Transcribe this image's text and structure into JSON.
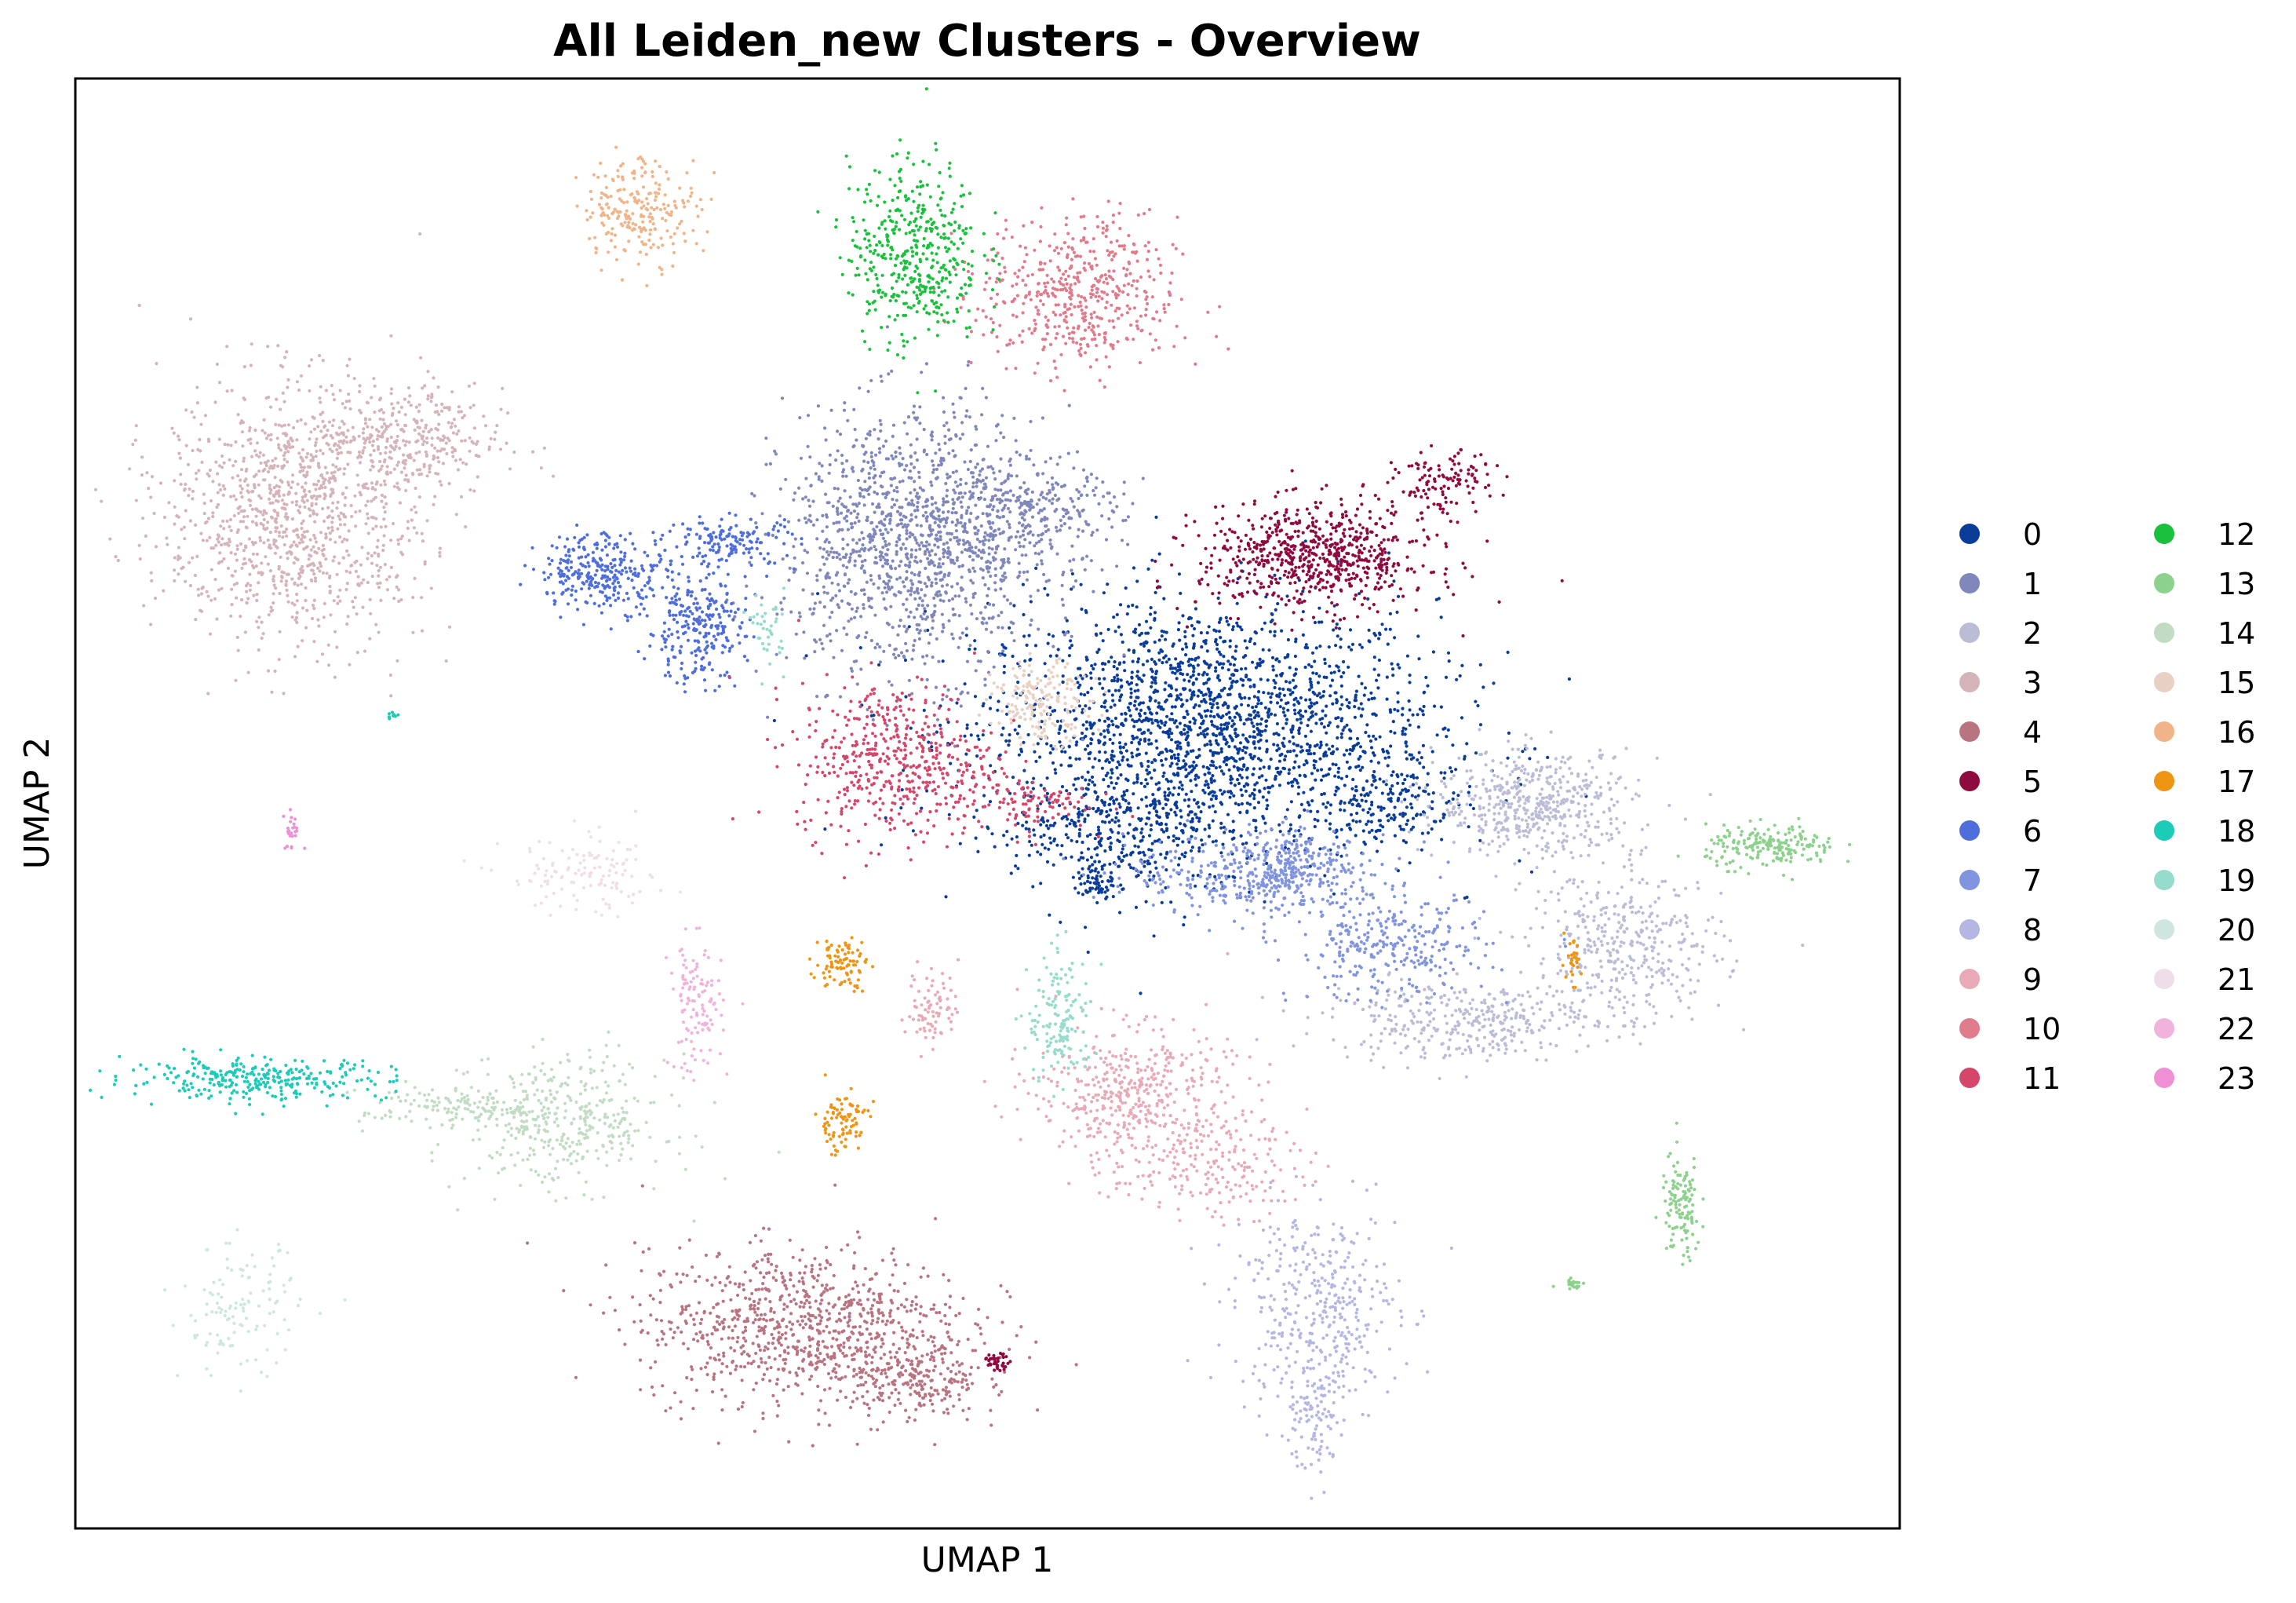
{
  "chart_data": {
    "type": "scatter",
    "title": "All Leiden_new Clusters - Overview",
    "xlabel": "UMAP 1",
    "ylabel": "UMAP 2",
    "xlim": [
      0,
      100
    ],
    "ylim": [
      0,
      100
    ],
    "grid": false,
    "ticks": false,
    "legend": {
      "placement": "right, outside plot",
      "columns": 2
    },
    "series": [
      {
        "name": "0",
        "color": "#0a3c9a",
        "clusters": [
          {
            "x": 62,
            "y": 55,
            "sx": 7.0,
            "sy": 5.0,
            "n": 2200
          },
          {
            "x": 57,
            "y": 48,
            "sx": 3.0,
            "sy": 2.0,
            "n": 250
          },
          {
            "x": 72,
            "y": 50,
            "sx": 2.0,
            "sy": 1.5,
            "n": 150
          },
          {
            "x": 56,
            "y": 44.5,
            "sx": 0.6,
            "sy": 0.8,
            "n": 60
          }
        ]
      },
      {
        "name": "1",
        "color": "#8088bb",
        "clusters": [
          {
            "x": 46,
            "y": 68,
            "sx": 4.0,
            "sy": 5.0,
            "n": 1300
          },
          {
            "x": 52,
            "y": 70,
            "sx": 3.0,
            "sy": 2.0,
            "n": 300
          }
        ]
      },
      {
        "name": "2",
        "color": "#bbbdd6",
        "clusters": [
          {
            "x": 80,
            "y": 50,
            "sx": 3.0,
            "sy": 2.0,
            "n": 500
          },
          {
            "x": 85,
            "y": 40,
            "sx": 3.0,
            "sy": 3.0,
            "n": 400
          },
          {
            "x": 76,
            "y": 35,
            "sx": 4.0,
            "sy": 1.5,
            "n": 350
          }
        ]
      },
      {
        "name": "3",
        "color": "#d4b4b9",
        "clusters": [
          {
            "x": 12,
            "y": 70,
            "sx": 4.0,
            "sy": 5.0,
            "n": 1100
          },
          {
            "x": 18,
            "y": 75,
            "sx": 3.0,
            "sy": 2.0,
            "n": 300
          }
        ]
      },
      {
        "name": "4",
        "color": "#b87480",
        "clusters": [
          {
            "x": 40,
            "y": 14,
            "sx": 5.0,
            "sy": 3.0,
            "n": 900
          },
          {
            "x": 46,
            "y": 10,
            "sx": 2.0,
            "sy": 1.5,
            "n": 200
          }
        ]
      },
      {
        "name": "5",
        "color": "#8e0a3f",
        "clusters": [
          {
            "x": 68,
            "y": 67,
            "sx": 3.5,
            "sy": 2.0,
            "n": 700
          },
          {
            "x": 75,
            "y": 72,
            "sx": 1.5,
            "sy": 1.2,
            "n": 120
          },
          {
            "x": 50.5,
            "y": 11.5,
            "sx": 0.4,
            "sy": 0.3,
            "n": 40
          }
        ]
      },
      {
        "name": "6",
        "color": "#4e6edb",
        "clusters": [
          {
            "x": 29,
            "y": 66,
            "sx": 2.0,
            "sy": 1.5,
            "n": 300
          },
          {
            "x": 34,
            "y": 62,
            "sx": 1.5,
            "sy": 2.0,
            "n": 250
          },
          {
            "x": 36,
            "y": 68,
            "sx": 2.0,
            "sy": 1.0,
            "n": 150
          }
        ]
      },
      {
        "name": "7",
        "color": "#8094e0",
        "clusters": [
          {
            "x": 65,
            "y": 45,
            "sx": 4.0,
            "sy": 1.5,
            "n": 350
          },
          {
            "x": 72,
            "y": 40,
            "sx": 3.0,
            "sy": 2.0,
            "n": 300
          },
          {
            "x": 67,
            "y": 46,
            "sx": 1.5,
            "sy": 1.5,
            "n": 150
          }
        ]
      },
      {
        "name": "8",
        "color": "#b3b7e2",
        "clusters": [
          {
            "x": 68,
            "y": 15,
            "sx": 2.5,
            "sy": 4.0,
            "n": 400
          },
          {
            "x": 68,
            "y": 7,
            "sx": 0.8,
            "sy": 2.0,
            "n": 80
          }
        ]
      },
      {
        "name": "9",
        "color": "#e8aab6",
        "clusters": [
          {
            "x": 58,
            "y": 30,
            "sx": 3.0,
            "sy": 2.5,
            "n": 450
          },
          {
            "x": 62,
            "y": 25,
            "sx": 3.0,
            "sy": 2.0,
            "n": 200
          },
          {
            "x": 47,
            "y": 36,
            "sx": 0.8,
            "sy": 1.5,
            "n": 80
          }
        ]
      },
      {
        "name": "10",
        "color": "#e07b8c",
        "clusters": [
          {
            "x": 55,
            "y": 85,
            "sx": 3.0,
            "sy": 3.0,
            "n": 500
          }
        ]
      },
      {
        "name": "11",
        "color": "#d4476a",
        "clusters": [
          {
            "x": 45,
            "y": 53,
            "sx": 3.0,
            "sy": 3.0,
            "n": 500
          },
          {
            "x": 52,
            "y": 50,
            "sx": 2.0,
            "sy": 1.0,
            "n": 100
          }
        ]
      },
      {
        "name": "12",
        "color": "#19c13d",
        "clusters": [
          {
            "x": 46,
            "y": 88,
            "sx": 2.0,
            "sy": 3.5,
            "n": 450
          }
        ]
      },
      {
        "name": "13",
        "color": "#8cd18c",
        "clusters": [
          {
            "x": 93,
            "y": 47,
            "sx": 2.0,
            "sy": 0.8,
            "n": 200
          },
          {
            "x": 88,
            "y": 22,
            "sx": 0.6,
            "sy": 2.0,
            "n": 120
          },
          {
            "x": 82,
            "y": 17,
            "sx": 0.4,
            "sy": 0.3,
            "n": 20
          }
        ]
      },
      {
        "name": "14",
        "color": "#c2dcc4",
        "clusters": [
          {
            "x": 27,
            "y": 28,
            "sx": 3.0,
            "sy": 2.5,
            "n": 350
          },
          {
            "x": 21,
            "y": 29,
            "sx": 3.0,
            "sy": 1.0,
            "n": 150
          }
        ]
      },
      {
        "name": "15",
        "color": "#e8d0c4",
        "clusters": [
          {
            "x": 53,
            "y": 57,
            "sx": 1.5,
            "sy": 1.5,
            "n": 180
          }
        ]
      },
      {
        "name": "16",
        "color": "#f0b488",
        "clusters": [
          {
            "x": 31,
            "y": 91,
            "sx": 1.8,
            "sy": 2.0,
            "n": 230
          }
        ]
      },
      {
        "name": "17",
        "color": "#ee9514",
        "clusters": [
          {
            "x": 42,
            "y": 39,
            "sx": 0.8,
            "sy": 1.0,
            "n": 90
          },
          {
            "x": 42,
            "y": 28,
            "sx": 0.8,
            "sy": 1.2,
            "n": 90
          },
          {
            "x": 82,
            "y": 39,
            "sx": 0.3,
            "sy": 0.8,
            "n": 30
          }
        ]
      },
      {
        "name": "18",
        "color": "#1ccbb8",
        "clusters": [
          {
            "x": 10,
            "y": 31,
            "sx": 4.0,
            "sy": 0.8,
            "n": 300
          },
          {
            "x": 17.5,
            "y": 56,
            "sx": 0.2,
            "sy": 0.2,
            "n": 8
          }
        ]
      },
      {
        "name": "19",
        "color": "#96dccd",
        "clusters": [
          {
            "x": 54,
            "y": 35,
            "sx": 1.0,
            "sy": 2.5,
            "n": 150
          },
          {
            "x": 38,
            "y": 62,
            "sx": 0.5,
            "sy": 1.5,
            "n": 40
          }
        ]
      },
      {
        "name": "20",
        "color": "#cfe6e0",
        "clusters": [
          {
            "x": 9,
            "y": 15,
            "sx": 1.8,
            "sy": 2.5,
            "n": 120
          }
        ]
      },
      {
        "name": "21",
        "color": "#efdde9",
        "clusters": [
          {
            "x": 28,
            "y": 45,
            "sx": 2.5,
            "sy": 1.5,
            "n": 120
          }
        ]
      },
      {
        "name": "22",
        "color": "#f0b4dc",
        "clusters": [
          {
            "x": 34,
            "y": 36,
            "sx": 0.8,
            "sy": 2.5,
            "n": 120
          }
        ]
      },
      {
        "name": "23",
        "color": "#f090d4",
        "clusters": [
          {
            "x": 12,
            "y": 48,
            "sx": 0.5,
            "sy": 0.8,
            "n": 25
          }
        ]
      }
    ]
  }
}
